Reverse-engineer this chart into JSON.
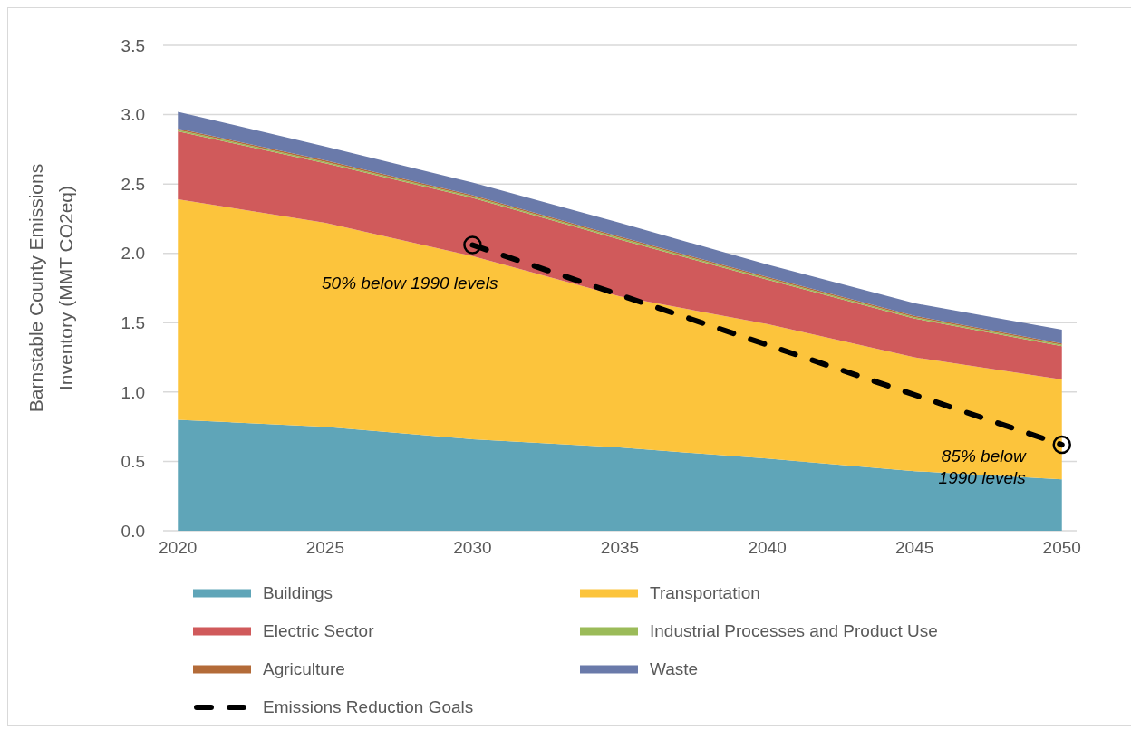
{
  "chart_data": {
    "type": "area",
    "stacked": true,
    "x": [
      2020,
      2025,
      2030,
      2035,
      2040,
      2045,
      2050
    ],
    "xlim": [
      2019.5,
      2050.5
    ],
    "xticks": [
      2020,
      2025,
      2030,
      2035,
      2040,
      2045,
      2050
    ],
    "ylim": [
      0,
      3.5
    ],
    "yticks": [
      {
        "value": 0,
        "label": "0.0"
      },
      0.5,
      {
        "value": 1,
        "label": "1.0"
      },
      1.5,
      {
        "value": 2,
        "label": "2.0"
      },
      2.5,
      {
        "value": 3,
        "label": "3.0"
      },
      3.5
    ],
    "ylabel": "Barnstable County Emissions Inventory (MMT CO2eq)",
    "grid": "y",
    "legend": "bottom",
    "series": [
      {
        "name": "Buildings",
        "color": "#5fa5b8",
        "values": [
          0.8,
          0.75,
          0.66,
          0.6,
          0.52,
          0.43,
          0.37
        ]
      },
      {
        "name": "Transportation",
        "color": "#fcc43c",
        "values": [
          1.59,
          1.47,
          1.32,
          1.09,
          0.97,
          0.82,
          0.72
        ]
      },
      {
        "name": "Electric Sector",
        "color": "#d05a5b",
        "values": [
          0.49,
          0.43,
          0.42,
          0.41,
          0.32,
          0.28,
          0.24
        ]
      },
      {
        "name": "Industrial Processes and Product Use",
        "color": "#9bbb59",
        "values": [
          0.01,
          0.01,
          0.01,
          0.01,
          0.01,
          0.01,
          0.01
        ]
      },
      {
        "name": "Agriculture",
        "color": "#b36b38",
        "values": [
          0.01,
          0.01,
          0.01,
          0.01,
          0.01,
          0.01,
          0.01
        ]
      },
      {
        "name": "Waste",
        "color": "#6a7aaa",
        "values": [
          0.12,
          0.1,
          0.09,
          0.1,
          0.09,
          0.09,
          0.1
        ]
      },
      {
        "name": "Emissions Reduction Goals",
        "type": "line",
        "color": "#000000",
        "x": [
          2030,
          2050
        ],
        "values": [
          2.06,
          0.62
        ],
        "line_style": "dashed",
        "marker": "circle"
      }
    ],
    "annotations": [
      {
        "text": "50% below 1990 levels",
        "x": 2030,
        "y": 2.06
      },
      {
        "text": "85% below 1990 levels",
        "x": 2050,
        "y": 0.62
      }
    ]
  }
}
